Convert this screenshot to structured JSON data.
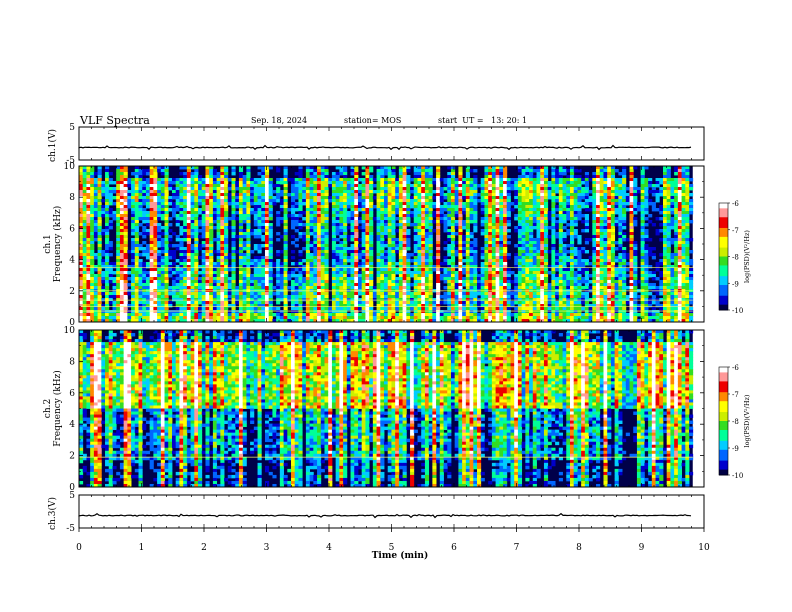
{
  "header": {
    "title": "VLF Spectra",
    "date": "Sep. 18, 2024",
    "station": "station= MOS",
    "start": "start  UT =   13: 20: 1"
  },
  "chart_data": [
    {
      "type": "line",
      "panel": "ch1-waveform",
      "ylabel": "ch.1(V)",
      "yticks": [
        "5",
        "-5"
      ],
      "ylim": [
        -5,
        5
      ],
      "description_values": {
        "baseline": 0
      }
    },
    {
      "type": "heatmap",
      "panel": "ch1-spectrogram",
      "ylabel": "ch.1\nFrequency (kHz)",
      "ylabel_lines": [
        "ch.1",
        "Frequency (kHz)"
      ],
      "yticks": [
        "0",
        "2",
        "4",
        "6",
        "8",
        "10"
      ],
      "ylim": [
        0,
        10
      ],
      "colorbar": {
        "label": "log(PSD)(V²/Hz)",
        "ticks": [
          "-6",
          "-7",
          "-8",
          "-9",
          "-10"
        ],
        "range": [
          -10,
          -6
        ]
      }
    },
    {
      "type": "heatmap",
      "panel": "ch2-spectrogram",
      "ylabel_lines": [
        "ch.2",
        "Frequency (kHz)"
      ],
      "yticks": [
        "0",
        "2",
        "4",
        "6",
        "8",
        "10"
      ],
      "ylim": [
        0,
        10
      ],
      "colorbar": {
        "label": "log(PSD)(V²/Hz)",
        "ticks": [
          "-6",
          "-7",
          "-8",
          "-9",
          "-10"
        ],
        "range": [
          -10,
          -6
        ]
      }
    },
    {
      "type": "line",
      "panel": "ch3-waveform",
      "ylabel": "ch.3(V)",
      "yticks": [
        "5",
        "-5"
      ],
      "ylim": [
        -5,
        5
      ]
    }
  ],
  "xaxis": {
    "label": "Time  (min)",
    "ticks": [
      "0",
      "1",
      "2",
      "3",
      "4",
      "5",
      "6",
      "7",
      "8",
      "9",
      "10"
    ],
    "xlim": [
      0,
      10
    ],
    "data_end": 9.82
  },
  "colors": {
    "colormap": [
      "#000044",
      "#0000cc",
      "#0066ff",
      "#00ccff",
      "#00ff99",
      "#33dd22",
      "#ccee00",
      "#ffff00",
      "#ff8800",
      "#ee0000",
      "#ff9999",
      "#ffffff"
    ]
  }
}
